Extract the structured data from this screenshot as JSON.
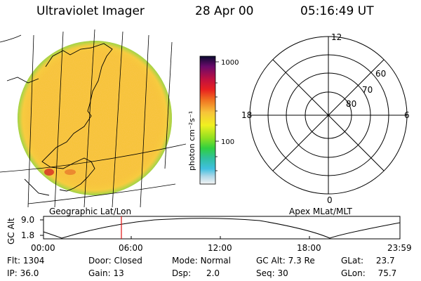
{
  "header": {
    "instrument": "Ultraviolet Imager",
    "date": "28 Apr 00",
    "time": "05:16:49 UT"
  },
  "colorbar": {
    "label": "photon cm⁻²s⁻¹",
    "ticks": [
      "1000",
      "100"
    ]
  },
  "polar_plot": {
    "mlt_labels": [
      "12",
      "18",
      "6",
      "0"
    ],
    "lat_labels": [
      "60",
      "70",
      "80"
    ]
  },
  "panel_labels": {
    "geographic": "Geographic Lat/Lon",
    "apex": "Apex MLat/MLT"
  },
  "altitude_plot": {
    "ylabel": "GC Alt",
    "yticks": [
      "9.0",
      "1.8"
    ],
    "xticks": [
      "00:00",
      "06:00",
      "12:00",
      "18:00",
      "23:59"
    ],
    "cursor_time": "05:16:49"
  },
  "footer": {
    "row1": [
      {
        "label": "Flt:",
        "value": "1304"
      },
      {
        "label": "Door:",
        "value": "Closed"
      },
      {
        "label": "Mode:",
        "value": "Normal"
      },
      {
        "label": "GC Alt:",
        "value": "7.3 Re"
      },
      {
        "label": "GLat:",
        "value": "23.7"
      }
    ],
    "row2": [
      {
        "label": "IP:",
        "value": "36.0"
      },
      {
        "label": "Gain:",
        "value": "13"
      },
      {
        "label": "Dsp:",
        "value": "2.0"
      },
      {
        "label": "Seq:",
        "value": "30"
      },
      {
        "label": "GLon:",
        "value": "75.7"
      }
    ]
  },
  "colors": {
    "cursor": "#e01010",
    "disk_base": "#f7c43a"
  }
}
